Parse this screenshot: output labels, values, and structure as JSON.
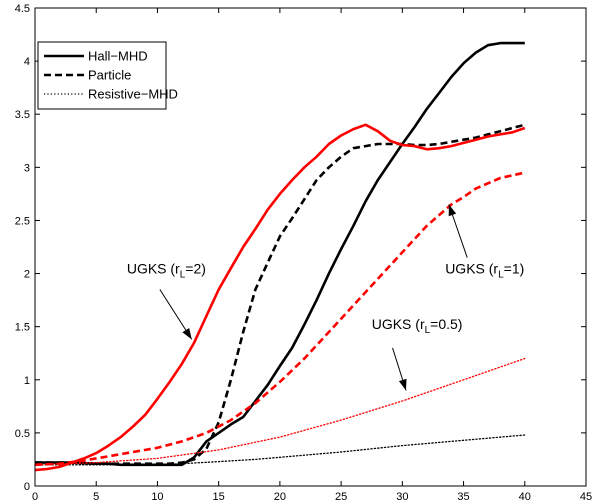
{
  "chart_data": {
    "type": "line",
    "xlim": [
      0,
      45
    ],
    "ylim": [
      0,
      4.5
    ],
    "xticks": [
      "0",
      "5",
      "10",
      "15",
      "20",
      "25",
      "30",
      "35",
      "40",
      "45"
    ],
    "yticks": [
      "0",
      "0.5",
      "1",
      "1.5",
      "2",
      "2.5",
      "3",
      "3.5",
      "4",
      "4.5"
    ],
    "grid": false,
    "legend_position": "top-left",
    "series": [
      {
        "name": "Hall−MHD",
        "color": "#000000",
        "style": "solid",
        "in_legend": true,
        "x": [
          0,
          3,
          5,
          6,
          7,
          8,
          9,
          10,
          11,
          12,
          13,
          14,
          15,
          16,
          17,
          18,
          19,
          20,
          21,
          22,
          23,
          24,
          25,
          26,
          27,
          28,
          29,
          30,
          31,
          32,
          33,
          34,
          35,
          36,
          37,
          38,
          39,
          40
        ],
        "y": [
          0.22,
          0.22,
          0.21,
          0.21,
          0.2,
          0.2,
          0.2,
          0.2,
          0.2,
          0.2,
          0.27,
          0.42,
          0.5,
          0.58,
          0.65,
          0.8,
          0.95,
          1.13,
          1.3,
          1.52,
          1.75,
          2.0,
          2.23,
          2.45,
          2.68,
          2.88,
          3.05,
          3.22,
          3.38,
          3.55,
          3.7,
          3.85,
          3.98,
          4.08,
          4.15,
          4.17,
          4.17,
          4.17
        ]
      },
      {
        "name": "Particle",
        "color": "#000000",
        "style": "dashed",
        "in_legend": true,
        "x": [
          0,
          3,
          5,
          7,
          9,
          11,
          12,
          13,
          14,
          15,
          16,
          17,
          18,
          19,
          20,
          21,
          22,
          23,
          24,
          25,
          26,
          27,
          28,
          29,
          30,
          31,
          32,
          33,
          34,
          35,
          36,
          37,
          38,
          39,
          40
        ],
        "y": [
          0.22,
          0.22,
          0.21,
          0.21,
          0.21,
          0.21,
          0.22,
          0.25,
          0.35,
          0.6,
          1.0,
          1.45,
          1.85,
          2.1,
          2.35,
          2.52,
          2.7,
          2.88,
          3.0,
          3.1,
          3.18,
          3.2,
          3.22,
          3.22,
          3.22,
          3.21,
          3.21,
          3.22,
          3.24,
          3.26,
          3.28,
          3.31,
          3.34,
          3.37,
          3.4
        ]
      },
      {
        "name": "Resistive−MHD",
        "color": "#000000",
        "style": "dotted",
        "in_legend": true,
        "x": [
          0,
          5,
          10,
          12,
          15,
          18,
          20,
          25,
          30,
          35,
          40
        ],
        "y": [
          0.2,
          0.2,
          0.2,
          0.21,
          0.23,
          0.25,
          0.27,
          0.32,
          0.38,
          0.43,
          0.48
        ]
      },
      {
        "name": "",
        "color": "#ff0000",
        "style": "solid",
        "in_legend": false,
        "x": [
          0,
          1,
          2,
          3,
          4,
          5,
          6,
          7,
          8,
          9,
          10,
          11,
          12,
          13,
          14,
          15,
          16,
          17,
          18,
          19,
          20,
          21,
          22,
          23,
          24,
          25,
          26,
          27,
          28,
          29,
          30,
          31,
          32,
          33,
          34,
          35,
          36,
          37,
          38,
          39,
          40
        ],
        "y": [
          0.15,
          0.16,
          0.18,
          0.22,
          0.26,
          0.31,
          0.38,
          0.46,
          0.56,
          0.67,
          0.82,
          0.98,
          1.15,
          1.35,
          1.6,
          1.85,
          2.05,
          2.25,
          2.42,
          2.6,
          2.75,
          2.88,
          3.0,
          3.1,
          3.22,
          3.3,
          3.36,
          3.4,
          3.34,
          3.25,
          3.21,
          3.2,
          3.17,
          3.18,
          3.2,
          3.23,
          3.26,
          3.29,
          3.31,
          3.33,
          3.37
        ]
      },
      {
        "name": "",
        "color": "#ff0000",
        "style": "dashed",
        "in_legend": false,
        "x": [
          0,
          2,
          4,
          6,
          8,
          10,
          12,
          14,
          16,
          18,
          20,
          22,
          24,
          26,
          28,
          30,
          32,
          34,
          35,
          36,
          38,
          40
        ],
        "y": [
          0.2,
          0.21,
          0.24,
          0.28,
          0.32,
          0.36,
          0.42,
          0.5,
          0.62,
          0.78,
          0.98,
          1.2,
          1.45,
          1.7,
          1.95,
          2.2,
          2.45,
          2.65,
          2.72,
          2.8,
          2.9,
          2.95
        ]
      },
      {
        "name": "",
        "color": "#ff0000",
        "style": "dotted",
        "in_legend": false,
        "x": [
          0,
          5,
          10,
          15,
          20,
          25,
          30,
          35,
          40
        ],
        "y": [
          0.2,
          0.22,
          0.26,
          0.34,
          0.46,
          0.62,
          0.8,
          1.0,
          1.2
        ]
      }
    ],
    "annotations": [
      {
        "text": "UGKS (r",
        "sub": "L",
        "tail": "=2)",
        "x": 7.5,
        "y": 2.0,
        "arrow_from": [
          10.2,
          1.85
        ],
        "arrow_to": [
          12.8,
          1.38
        ]
      },
      {
        "text": "UGKS (r",
        "sub": "L",
        "tail": "=1)",
        "x": 33.5,
        "y": 2.0,
        "arrow_from": [
          35.3,
          2.15
        ],
        "arrow_to": [
          33.8,
          2.65
        ]
      },
      {
        "text": "UGKS (r",
        "sub": "L",
        "tail": "=0.5)",
        "x": 27.5,
        "y": 1.48,
        "arrow_from": [
          29.2,
          1.3
        ],
        "arrow_to": [
          30.3,
          0.9
        ]
      }
    ]
  }
}
